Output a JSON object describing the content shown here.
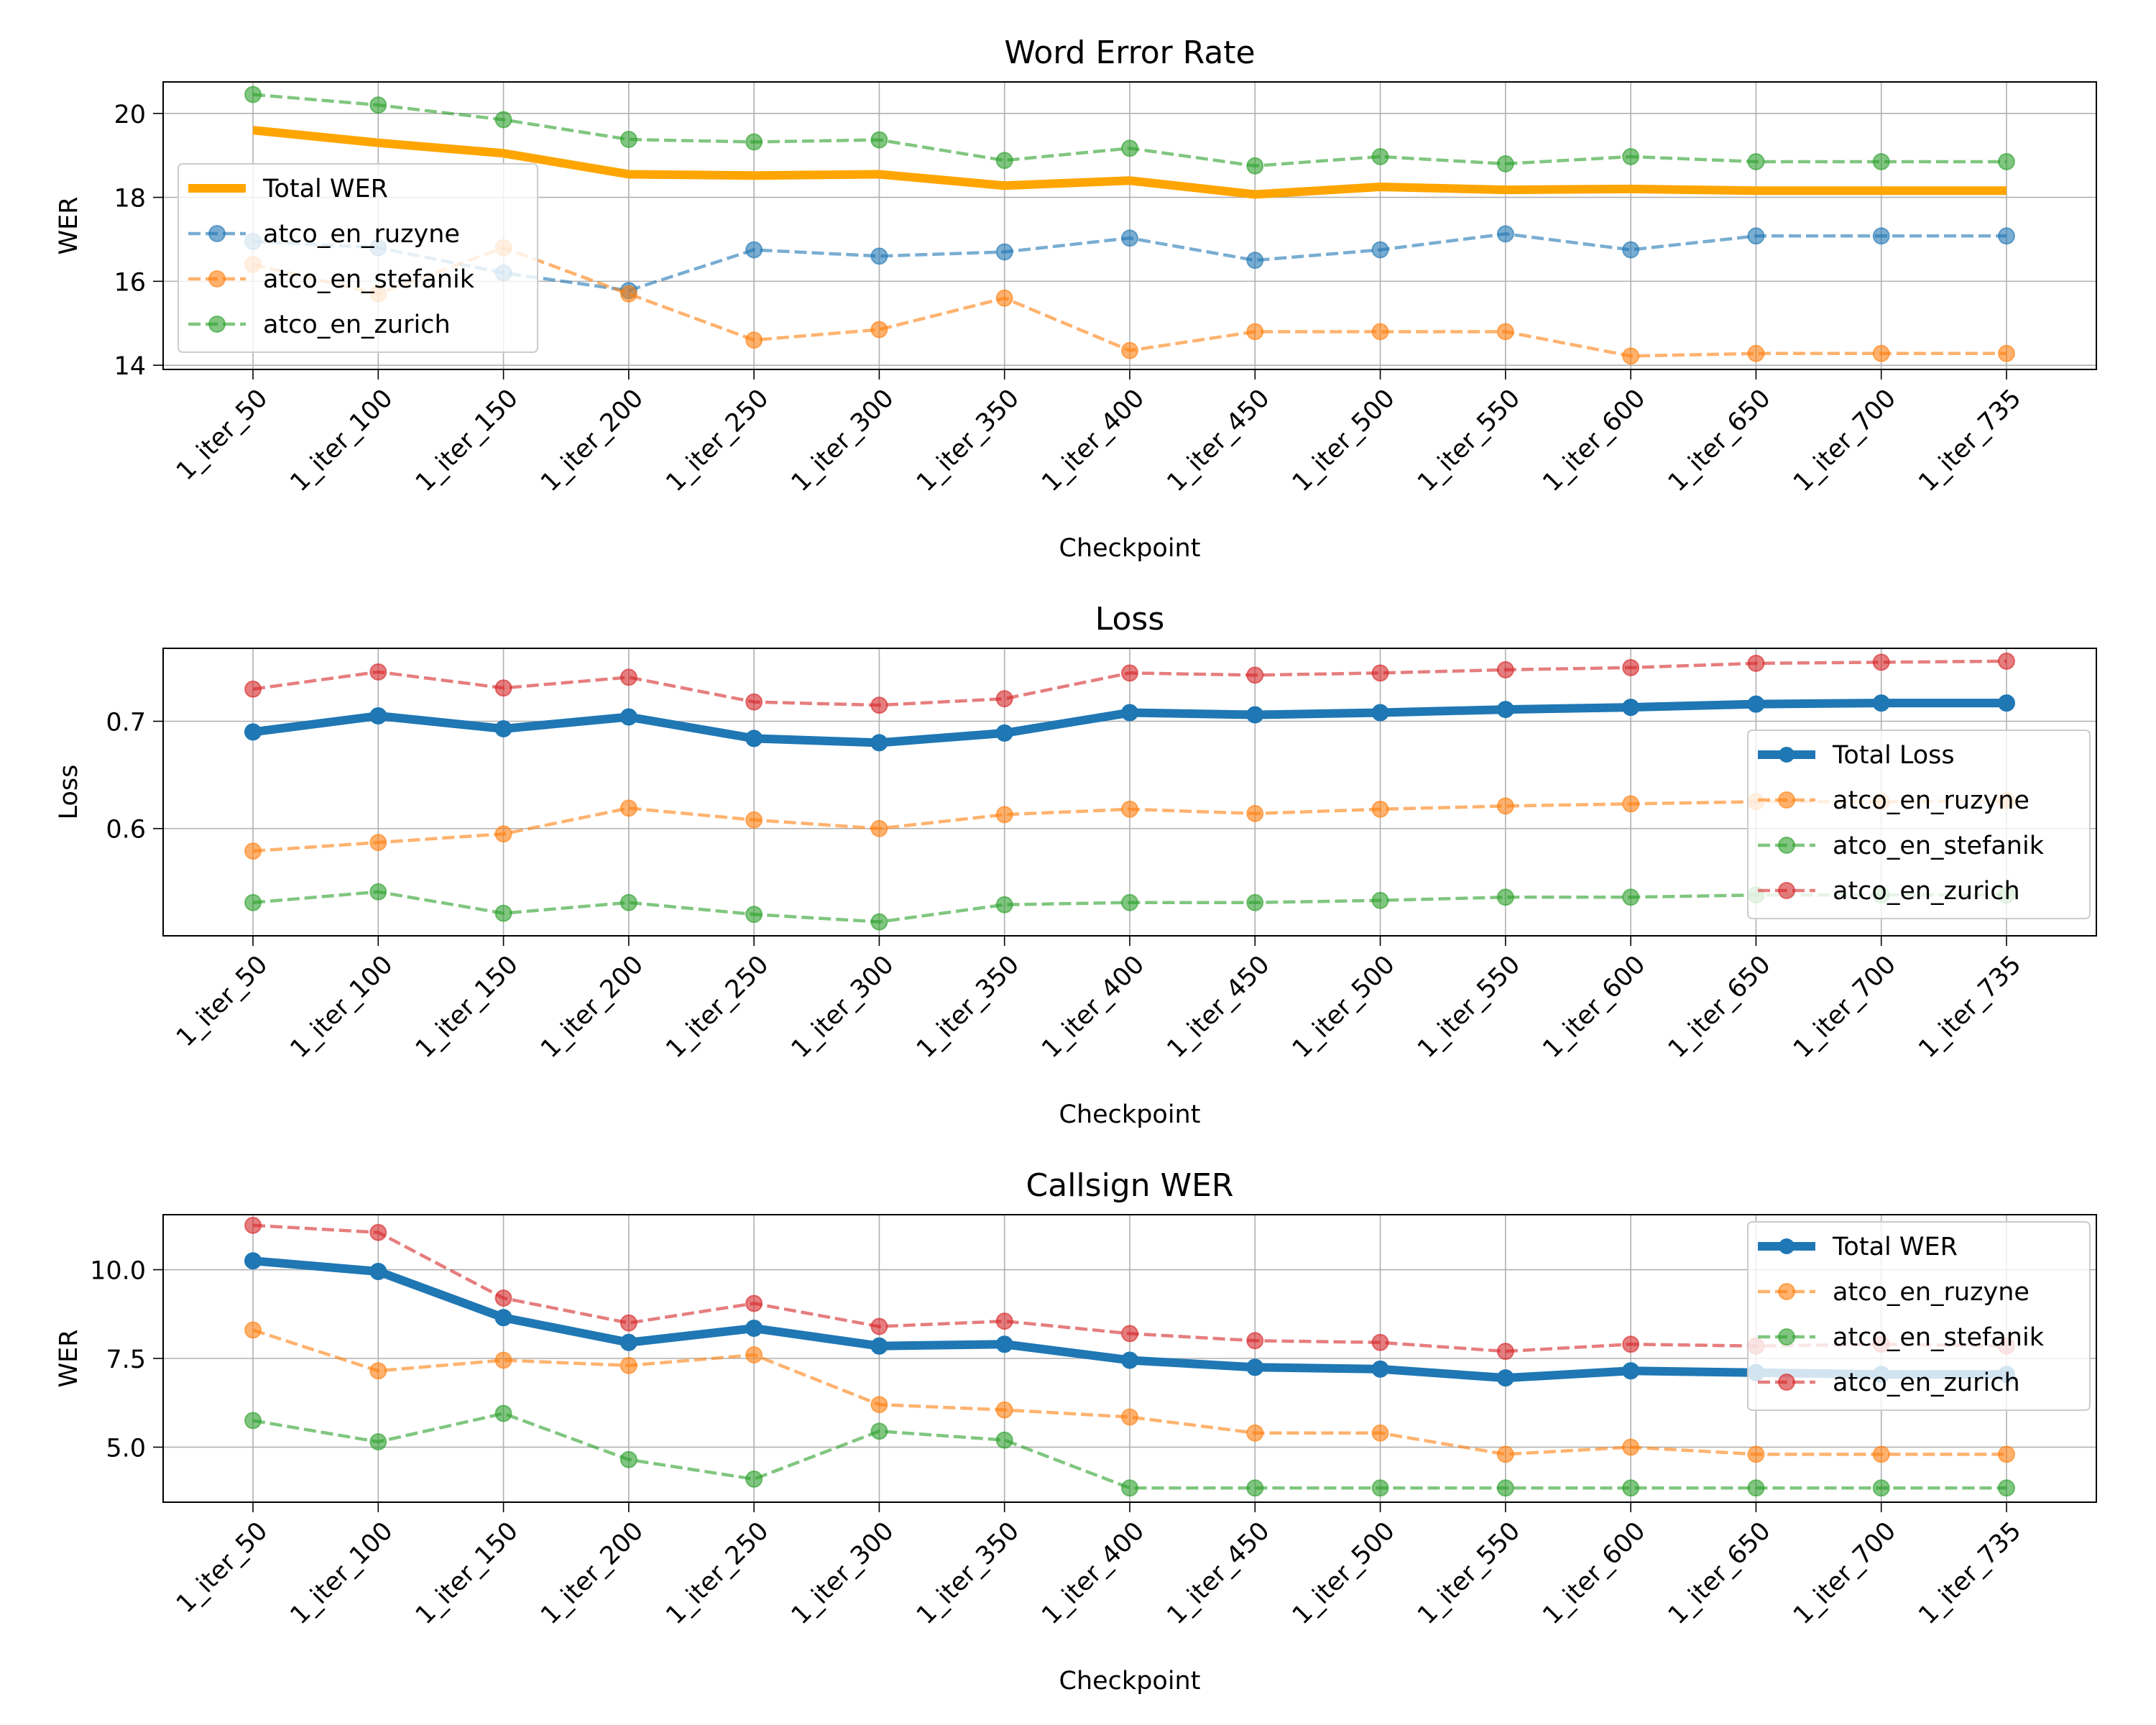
{
  "chart_data": [
    {
      "type": "line",
      "title": "Word Error Rate",
      "xlabel": "Checkpoint",
      "ylabel": "WER",
      "categories": [
        "1_iter_50",
        "1_iter_100",
        "1_iter_150",
        "1_iter_200",
        "1_iter_250",
        "1_iter_300",
        "1_iter_350",
        "1_iter_400",
        "1_iter_450",
        "1_iter_500",
        "1_iter_550",
        "1_iter_600",
        "1_iter_650",
        "1_iter_700",
        "1_iter_735"
      ],
      "ylim": [
        13.9,
        20.75
      ],
      "yticks": [
        14,
        16,
        18,
        20
      ],
      "ytick_labels": [
        "14",
        "16",
        "18",
        "20"
      ],
      "grid": true,
      "legend_position": "center-left",
      "series": [
        {
          "name": "Total WER",
          "style": "solid-thick",
          "color": "#ffa500",
          "markers": false,
          "values": [
            19.6,
            19.3,
            19.05,
            18.55,
            18.52,
            18.55,
            18.28,
            18.4,
            18.07,
            18.25,
            18.18,
            18.2,
            18.16,
            18.16,
            18.16
          ]
        },
        {
          "name": "atco_en_ruzyne",
          "style": "dashed",
          "color": "#1f77b4",
          "markers": true,
          "values": [
            16.95,
            16.8,
            16.2,
            15.78,
            16.75,
            16.6,
            16.7,
            17.03,
            16.5,
            16.75,
            17.13,
            16.75,
            17.08,
            17.08,
            17.08
          ]
        },
        {
          "name": "atco_en_stefanik",
          "style": "dashed",
          "color": "#ff7f0e",
          "markers": true,
          "values": [
            16.4,
            15.7,
            16.8,
            15.7,
            14.6,
            14.85,
            15.6,
            14.35,
            14.8,
            14.8,
            14.8,
            14.22,
            14.28,
            14.28,
            14.28
          ]
        },
        {
          "name": "atco_en_zurich",
          "style": "dashed",
          "color": "#2ca02c",
          "markers": true,
          "values": [
            20.45,
            20.2,
            19.85,
            19.38,
            19.32,
            19.37,
            18.88,
            19.17,
            18.75,
            18.97,
            18.8,
            18.97,
            18.85,
            18.85,
            18.85
          ]
        }
      ]
    },
    {
      "type": "line",
      "title": "Loss",
      "xlabel": "Checkpoint",
      "ylabel": "Loss",
      "categories": [
        "1_iter_50",
        "1_iter_100",
        "1_iter_150",
        "1_iter_200",
        "1_iter_250",
        "1_iter_300",
        "1_iter_350",
        "1_iter_400",
        "1_iter_450",
        "1_iter_500",
        "1_iter_550",
        "1_iter_600",
        "1_iter_650",
        "1_iter_700",
        "1_iter_735"
      ],
      "ylim": [
        0.5,
        0.768
      ],
      "yticks": [
        0.6,
        0.7
      ],
      "ytick_labels": [
        "0.6",
        "0.7"
      ],
      "grid": true,
      "legend_position": "center-right",
      "series": [
        {
          "name": "Total Loss",
          "style": "solid-thick",
          "color": "#1f77b4",
          "markers": true,
          "values": [
            0.69,
            0.705,
            0.693,
            0.704,
            0.684,
            0.68,
            0.689,
            0.708,
            0.706,
            0.708,
            0.711,
            0.713,
            0.716,
            0.717,
            0.717
          ]
        },
        {
          "name": "atco_en_ruzyne",
          "style": "dashed",
          "color": "#ff7f0e",
          "markers": true,
          "values": [
            0.579,
            0.587,
            0.595,
            0.619,
            0.608,
            0.6,
            0.613,
            0.618,
            0.614,
            0.618,
            0.621,
            0.623,
            0.625,
            0.625,
            0.626
          ]
        },
        {
          "name": "atco_en_stefanik",
          "style": "dashed",
          "color": "#2ca02c",
          "markers": true,
          "values": [
            0.531,
            0.541,
            0.521,
            0.531,
            0.52,
            0.513,
            0.529,
            0.531,
            0.531,
            0.533,
            0.536,
            0.536,
            0.538,
            0.538,
            0.538
          ]
        },
        {
          "name": "atco_en_zurich",
          "style": "dashed",
          "color": "#d62728",
          "markers": true,
          "values": [
            0.73,
            0.746,
            0.731,
            0.741,
            0.718,
            0.715,
            0.721,
            0.745,
            0.743,
            0.745,
            0.748,
            0.75,
            0.754,
            0.755,
            0.756
          ]
        }
      ]
    },
    {
      "type": "line",
      "title": "Callsign WER",
      "xlabel": "Checkpoint",
      "ylabel": "WER",
      "categories": [
        "1_iter_50",
        "1_iter_100",
        "1_iter_150",
        "1_iter_200",
        "1_iter_250",
        "1_iter_300",
        "1_iter_350",
        "1_iter_400",
        "1_iter_450",
        "1_iter_500",
        "1_iter_550",
        "1_iter_600",
        "1_iter_650",
        "1_iter_700",
        "1_iter_735"
      ],
      "ylim": [
        3.45,
        11.55
      ],
      "yticks": [
        5.0,
        7.5,
        10.0
      ],
      "ytick_labels": [
        "5.0",
        "7.5",
        "10.0"
      ],
      "grid": true,
      "legend_position": "upper-right",
      "series": [
        {
          "name": "Total WER",
          "style": "solid-thick",
          "color": "#1f77b4",
          "markers": true,
          "values": [
            10.25,
            9.95,
            8.65,
            7.95,
            8.35,
            7.85,
            7.9,
            7.45,
            7.25,
            7.2,
            6.95,
            7.15,
            7.1,
            7.05,
            7.05
          ]
        },
        {
          "name": "atco_en_ruzyne",
          "style": "dashed",
          "color": "#ff7f0e",
          "markers": true,
          "values": [
            8.3,
            7.15,
            7.45,
            7.3,
            7.6,
            6.2,
            6.05,
            5.85,
            5.4,
            5.4,
            4.8,
            5.0,
            4.8,
            4.8,
            4.8
          ]
        },
        {
          "name": "atco_en_stefanik",
          "style": "dashed",
          "color": "#2ca02c",
          "markers": true,
          "values": [
            5.75,
            5.15,
            5.95,
            4.65,
            4.1,
            5.45,
            5.2,
            3.85,
            3.85,
            3.85,
            3.85,
            3.85,
            3.85,
            3.85,
            3.85
          ]
        },
        {
          "name": "atco_en_zurich",
          "style": "dashed",
          "color": "#d62728",
          "markers": true,
          "values": [
            11.25,
            11.05,
            9.2,
            8.5,
            9.05,
            8.4,
            8.55,
            8.2,
            8.0,
            7.95,
            7.7,
            7.9,
            7.85,
            7.9,
            7.85
          ]
        }
      ]
    }
  ]
}
